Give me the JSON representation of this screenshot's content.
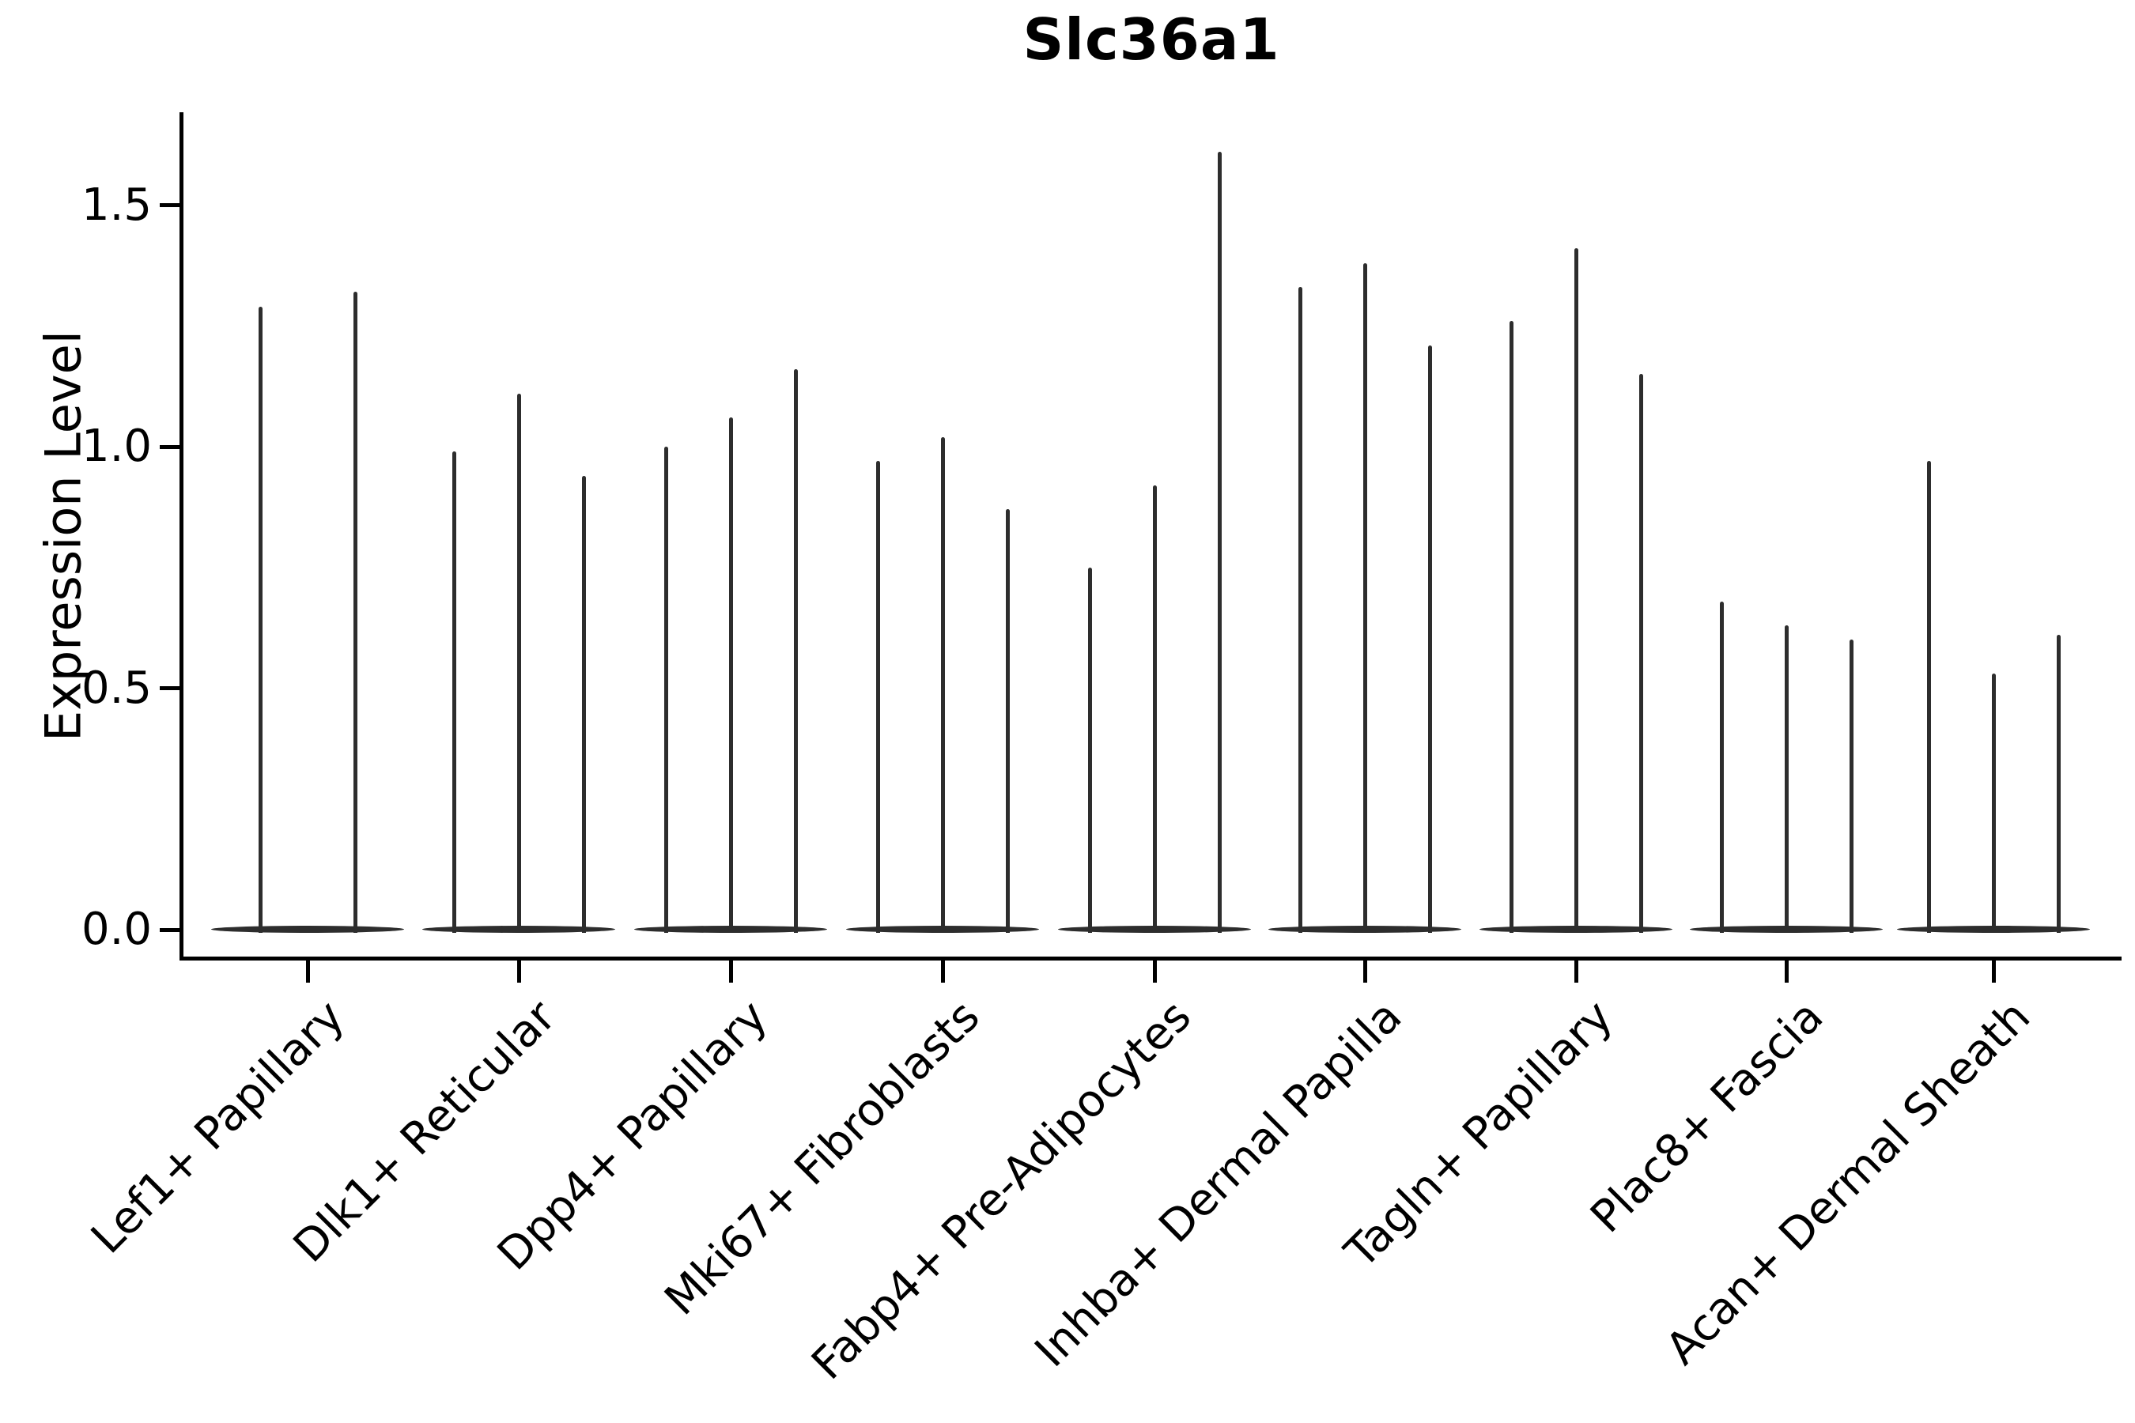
{
  "figure": {
    "background": "#ffffff",
    "ink_color": "#000000",
    "violin_color": "#2d2d2d"
  },
  "chart_data": {
    "type": "violin",
    "title": "Slc36a1",
    "ylabel": "Expression Level",
    "xlabel": "",
    "yticks": [
      0.0,
      0.5,
      1.0,
      1.5
    ],
    "ylim": [
      -0.06,
      1.7
    ],
    "grid": false,
    "legend": false,
    "categories": [
      "Lef1+ Papillary",
      "Dlk1+ Reticular",
      "Dpp4+ Papillary",
      "Mki67+ Fibroblasts",
      "Fabp4+ Pre-Adipocytes",
      "Inhba+ Dermal Papilla",
      "Tagln+ Papillary",
      "Plac8+ Fascia",
      "Acan+ Dermal Sheath"
    ],
    "violins_per_category": [
      2,
      3,
      3,
      3,
      3,
      3,
      3,
      3,
      3
    ],
    "violin_max_expression": [
      [
        1.29,
        1.32
      ],
      [
        0.99,
        1.11,
        0.94
      ],
      [
        1.0,
        1.06,
        1.16
      ],
      [
        0.97,
        1.02,
        0.87
      ],
      [
        0.75,
        0.92,
        1.61
      ],
      [
        1.33,
        1.38,
        1.21
      ],
      [
        1.26,
        1.41,
        1.15
      ],
      [
        0.68,
        0.63,
        0.6
      ],
      [
        0.97,
        0.53,
        0.61
      ]
    ],
    "violin_min_expression": 0.0,
    "shape_note": "Each violin's density mass sits at 0 (wide flat base) with a thin vertical spike reaching the max expression value."
  }
}
